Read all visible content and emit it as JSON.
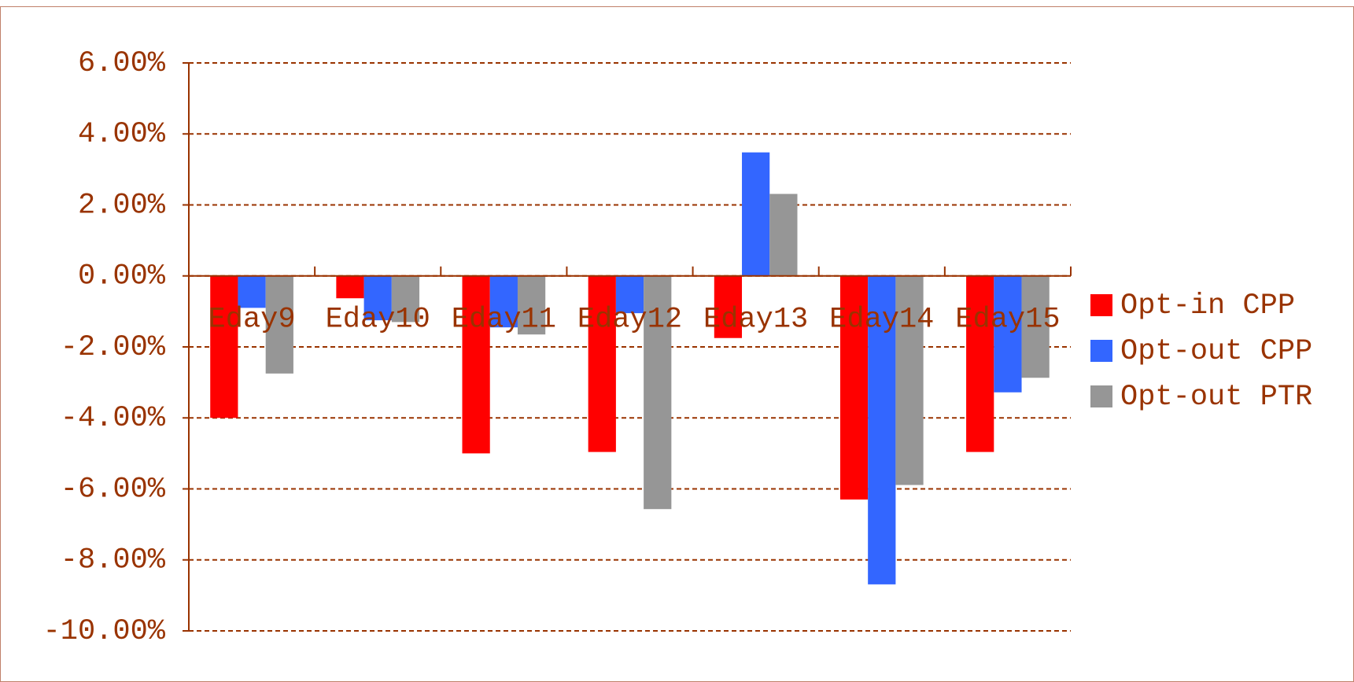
{
  "chart_data": {
    "type": "bar",
    "categories": [
      "Eday9",
      "Eday10",
      "Eday11",
      "Eday12",
      "Eday13",
      "Eday14",
      "Eday15"
    ],
    "series": [
      {
        "name": "Opt-in CPP",
        "color": "#ff0000",
        "values": [
          -4.0,
          -0.63,
          -5.0,
          -4.96,
          -1.75,
          -6.3,
          -4.96
        ]
      },
      {
        "name": "Opt-out CPP",
        "color": "#3366ff",
        "values": [
          -0.9,
          -1.25,
          -1.45,
          -1.05,
          3.48,
          -8.69,
          -3.28
        ]
      },
      {
        "name": "Opt-out PTR",
        "color": "#969696",
        "values": [
          -2.75,
          -1.3,
          -1.65,
          -6.57,
          2.31,
          -5.89,
          -2.87
        ]
      }
    ],
    "ylim": [
      -10,
      6
    ],
    "yticks": [
      {
        "value": -10,
        "label": "-10.00%"
      },
      {
        "value": -8,
        "label": "-8.00%"
      },
      {
        "value": -6,
        "label": "-6.00%"
      },
      {
        "value": -4,
        "label": "-4.00%"
      },
      {
        "value": -2,
        "label": "-2.00%"
      },
      {
        "value": 0,
        "label": "0.00%"
      },
      {
        "value": 2,
        "label": "2.00%"
      },
      {
        "value": 4,
        "label": "4.00%"
      },
      {
        "value": 6,
        "label": "6.00%"
      }
    ],
    "grid": true,
    "legend": "right"
  }
}
